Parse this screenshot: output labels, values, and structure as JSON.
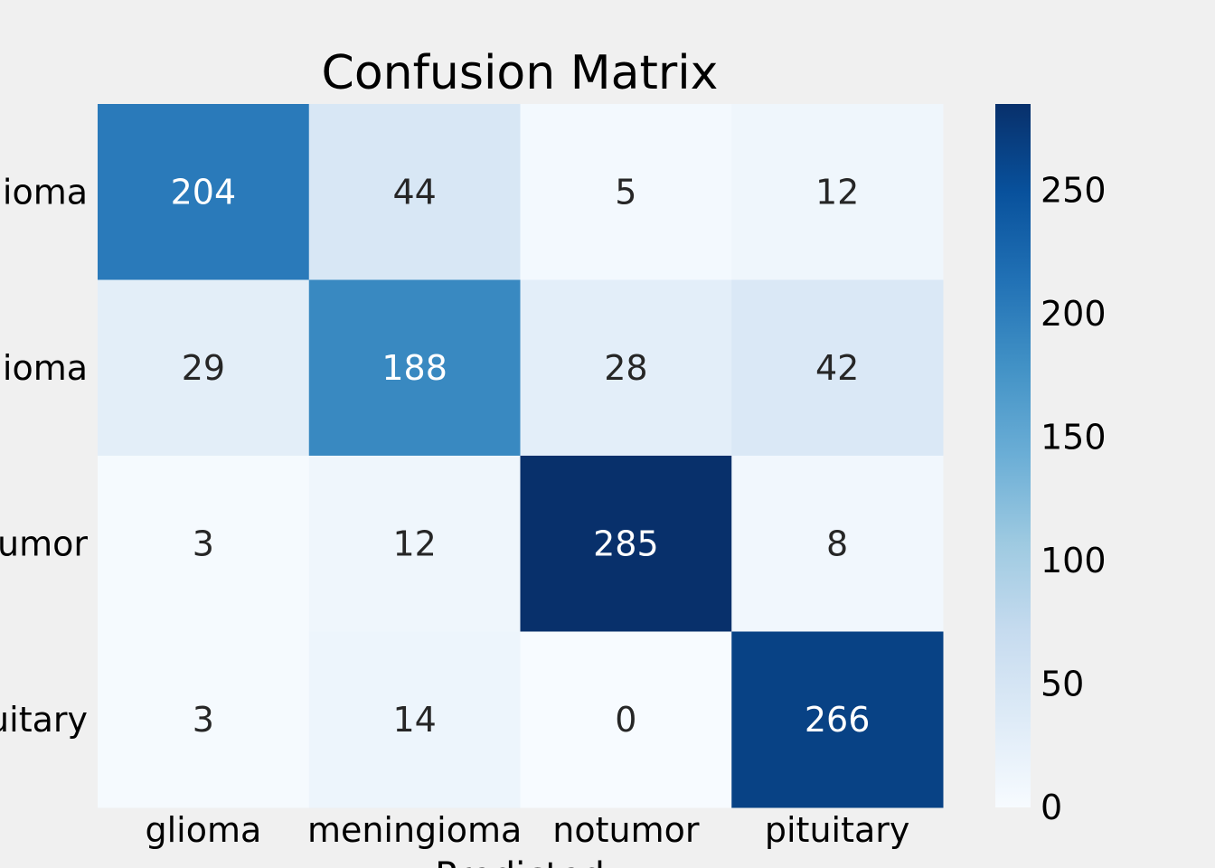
{
  "chart_data": {
    "type": "heatmap",
    "title": "Confusion Matrix",
    "xlabel": "Predicted",
    "ylabel": "",
    "x_categories": [
      "glioma",
      "meningioma",
      "notumor",
      "pituitary"
    ],
    "y_categories": [
      "glioma",
      "meningioma",
      "notumor",
      "pituitary"
    ],
    "values": [
      [
        204,
        44,
        5,
        12
      ],
      [
        29,
        188,
        28,
        42
      ],
      [
        3,
        12,
        285,
        8
      ],
      [
        3,
        14,
        0,
        266
      ]
    ],
    "colormap": "Blues",
    "colorbar": {
      "min": 0,
      "max": 285,
      "ticks": [
        0,
        50,
        100,
        150,
        200,
        250
      ]
    },
    "annotations": true,
    "grid": false
  }
}
